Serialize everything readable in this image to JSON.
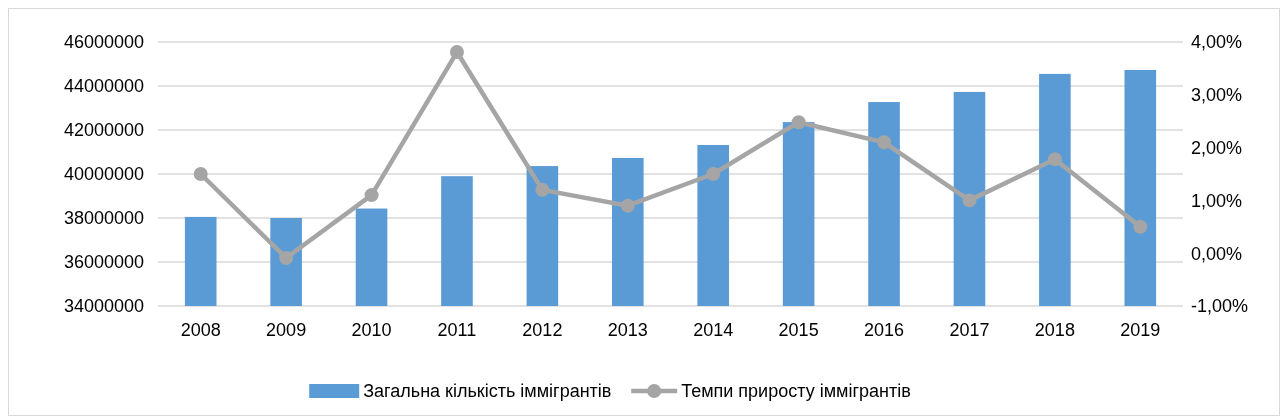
{
  "chart_data": {
    "type": "bar",
    "categories": [
      "2008",
      "2009",
      "2010",
      "2011",
      "2012",
      "2013",
      "2014",
      "2015",
      "2016",
      "2017",
      "2018",
      "2019"
    ],
    "series": [
      {
        "name": "Загальна кількість іммігрантів",
        "color": "#5b9bd5",
        "values": [
          38050000,
          38000000,
          38430000,
          39900000,
          40360000,
          40730000,
          41320000,
          42360000,
          43270000,
          43730000,
          44550000,
          44730000
        ]
      },
      {
        "name": "Темпи приросту іммігрантів",
        "type": "line",
        "axis": "y2",
        "color": "#a5a5a5",
        "marker": "circle",
        "values": [
          1.5,
          -0.09,
          1.1,
          3.81,
          1.2,
          0.9,
          1.5,
          2.48,
          2.1,
          1.0,
          1.78,
          0.5
        ]
      }
    ],
    "ylim": [
      34000000,
      46000000
    ],
    "yticks": [
      34000000,
      36000000,
      38000000,
      40000000,
      42000000,
      44000000,
      46000000
    ],
    "y2lim": [
      -1,
      4
    ],
    "y2ticks": [
      {
        "value": -1,
        "label": "-1,00%"
      },
      {
        "value": 0,
        "label": "0,00%"
      },
      {
        "value": 1,
        "label": "1,00%"
      },
      {
        "value": 2,
        "label": "2,00%"
      },
      {
        "value": 3,
        "label": "3,00%"
      },
      {
        "value": 4,
        "label": "4,00%"
      }
    ],
    "grid": "y",
    "legend": "bottom"
  }
}
